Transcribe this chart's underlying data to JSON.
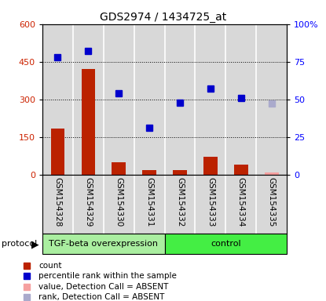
{
  "title": "GDS2974 / 1434725_at",
  "samples": [
    "GSM154328",
    "GSM154329",
    "GSM154330",
    "GSM154331",
    "GSM154332",
    "GSM154333",
    "GSM154334",
    "GSM154335"
  ],
  "bar_values": [
    185,
    420,
    50,
    18,
    18,
    70,
    40,
    null
  ],
  "bar_absent": [
    null,
    null,
    null,
    null,
    null,
    null,
    null,
    10
  ],
  "rank_values": [
    78,
    82,
    54,
    31,
    48,
    57,
    51,
    null
  ],
  "rank_absent": [
    null,
    null,
    null,
    null,
    null,
    null,
    null,
    47
  ],
  "left_ylim": [
    0,
    600
  ],
  "left_yticks": [
    0,
    150,
    300,
    450,
    600
  ],
  "right_ylim": [
    0,
    100
  ],
  "right_yticks": [
    0,
    25,
    50,
    75,
    100
  ],
  "right_yticklabels": [
    "0",
    "25",
    "50",
    "75",
    "100%"
  ],
  "bar_color": "#BB2200",
  "bar_absent_color": "#F5A0A0",
  "rank_color": "#0000CC",
  "rank_absent_color": "#AAAACC",
  "group1_label": "TGF-beta overexpression",
  "group2_label": "control",
  "group1_color": "#AAEEA0",
  "group2_color": "#44EE44",
  "protocol_label": "protocol",
  "legend_items": [
    {
      "label": "count",
      "color": "#BB2200"
    },
    {
      "label": "percentile rank within the sample",
      "color": "#0000CC"
    },
    {
      "label": "value, Detection Call = ABSENT",
      "color": "#F5A0A0"
    },
    {
      "label": "rank, Detection Call = ABSENT",
      "color": "#AAAACC"
    }
  ],
  "plot_bg_color": "#D8D8D8",
  "cell_sep_color": "#FFFFFF",
  "grid_color": "#000000",
  "spine_color": "#000000"
}
